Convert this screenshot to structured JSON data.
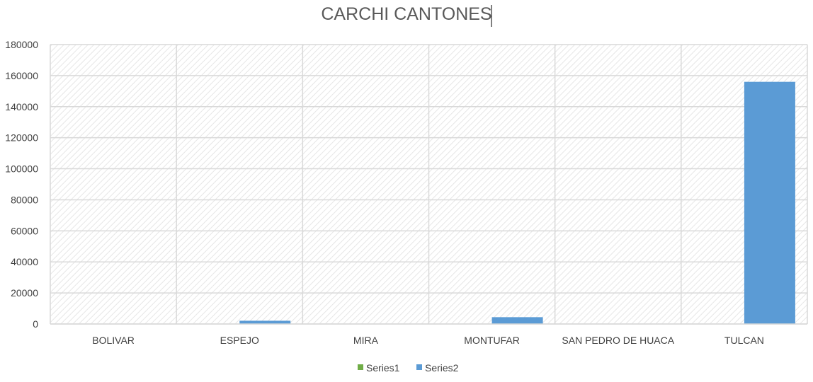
{
  "chart_data": {
    "type": "bar",
    "title": "CARCHI CANTONES",
    "categories": [
      "BOLIVAR",
      "ESPEJO",
      "MIRA",
      "MONTUFAR",
      "SAN PEDRO DE HUACA",
      "TULCAN"
    ],
    "series": [
      {
        "name": "Series1",
        "color": "#70AD47",
        "values": [
          0,
          0,
          0,
          0,
          0,
          0
        ]
      },
      {
        "name": "Series2",
        "color": "#5B9BD5",
        "values": [
          0,
          2100,
          0,
          4400,
          0,
          156000
        ]
      }
    ],
    "ylim": [
      0,
      180000
    ],
    "yticks": [
      "0",
      "20000",
      "40000",
      "60000",
      "80000",
      "100000",
      "120000",
      "140000",
      "160000",
      "180000"
    ],
    "grid": true,
    "plot_background": "hatched",
    "legend_position": "bottom",
    "colors": {
      "gridline": "#D9D9D9",
      "text": "#404040",
      "title": "#595959"
    }
  }
}
